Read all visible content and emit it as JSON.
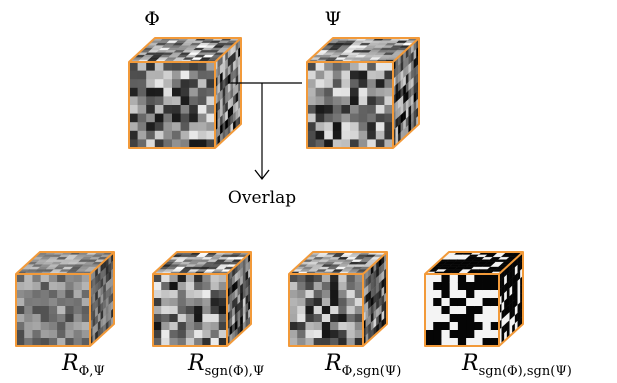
{
  "top_labels": {
    "phi": "Φ",
    "psi": "Ψ"
  },
  "overlap_label": "Overlap",
  "results": [
    {
      "base": "R",
      "sub": "Φ,Ψ"
    },
    {
      "base": "R",
      "sub": "sgn(Φ),Ψ"
    },
    {
      "base": "R",
      "sub": "Φ,sgn(Ψ)"
    },
    {
      "base": "R",
      "sub": "sgn(Φ),sgn(Ψ)"
    }
  ],
  "colors": {
    "cube_edge": "#f29a3a",
    "line": "#000000"
  }
}
